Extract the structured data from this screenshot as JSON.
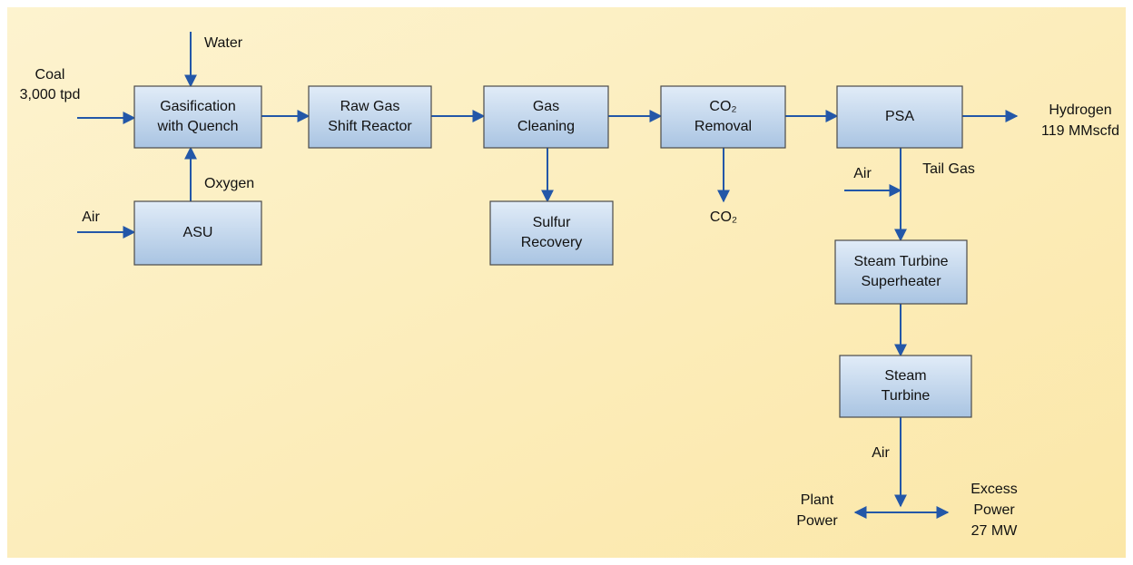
{
  "nodes": [
    {
      "lines": [
        "Gasification",
        "with Quench"
      ]
    },
    {
      "lines": [
        "Raw Gas",
        "Shift Reactor"
      ]
    },
    {
      "lines": [
        "Gas",
        "Cleaning"
      ]
    },
    {
      "lines": [
        "CO₂",
        "Removal"
      ]
    },
    {
      "lines": [
        "PSA"
      ]
    },
    {
      "lines": [
        "ASU"
      ]
    },
    {
      "lines": [
        "Sulfur",
        "Recovery"
      ]
    },
    {
      "lines": [
        "Steam Turbine",
        "Superheater"
      ]
    },
    {
      "lines": [
        "Steam",
        "Turbine"
      ]
    }
  ],
  "labels": [
    {
      "lines": [
        "Water"
      ]
    },
    {
      "lines": [
        "Coal",
        "3,000 tpd"
      ]
    },
    {
      "lines": [
        "Oxygen"
      ]
    },
    {
      "lines": [
        "Air"
      ]
    },
    {
      "lines": [
        "Hydrogen",
        "119 MMscfd"
      ]
    },
    {
      "lines": [
        "CO₂"
      ]
    },
    {
      "lines": [
        "Air"
      ]
    },
    {
      "lines": [
        "Tail Gas"
      ]
    },
    {
      "lines": [
        "Air"
      ]
    },
    {
      "lines": [
        "Plant",
        "Power"
      ]
    },
    {
      "lines": [
        "Excess",
        "Power",
        "27 MW"
      ]
    }
  ]
}
